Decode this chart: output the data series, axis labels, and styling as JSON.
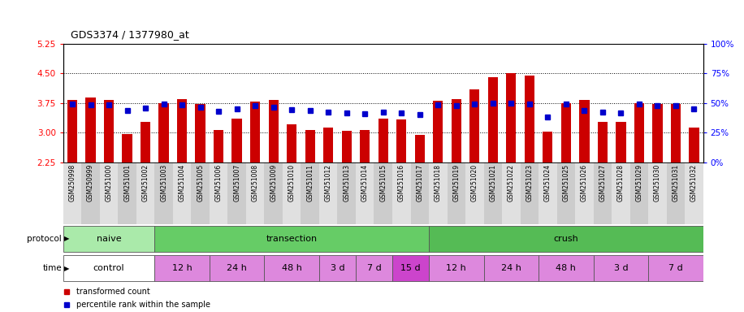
{
  "title": "GDS3374 / 1377980_at",
  "samples": [
    "GSM250998",
    "GSM250999",
    "GSM251000",
    "GSM251001",
    "GSM251002",
    "GSM251003",
    "GSM251004",
    "GSM251005",
    "GSM251006",
    "GSM251007",
    "GSM251008",
    "GSM251009",
    "GSM251010",
    "GSM251011",
    "GSM251012",
    "GSM251013",
    "GSM251014",
    "GSM251015",
    "GSM251016",
    "GSM251017",
    "GSM251018",
    "GSM251019",
    "GSM251020",
    "GSM251021",
    "GSM251022",
    "GSM251023",
    "GSM251024",
    "GSM251025",
    "GSM251026",
    "GSM251027",
    "GSM251028",
    "GSM251029",
    "GSM251030",
    "GSM251031",
    "GSM251032"
  ],
  "bar_values": [
    3.83,
    3.88,
    3.83,
    2.97,
    3.28,
    3.75,
    3.85,
    3.72,
    3.07,
    3.35,
    3.78,
    3.82,
    3.2,
    3.06,
    3.12,
    3.04,
    3.06,
    3.35,
    3.34,
    2.95,
    3.8,
    3.85,
    4.1,
    4.4,
    4.5,
    4.45,
    3.02,
    3.75,
    3.82,
    3.28,
    3.27,
    3.75,
    3.72,
    3.72,
    3.12
  ],
  "percentile_values": [
    3.72,
    3.7,
    3.7,
    3.55,
    3.62,
    3.72,
    3.7,
    3.65,
    3.53,
    3.6,
    3.68,
    3.65,
    3.57,
    3.55,
    3.52,
    3.5,
    3.48,
    3.52,
    3.5,
    3.46,
    3.7,
    3.68,
    3.72,
    3.75,
    3.75,
    3.73,
    3.4,
    3.72,
    3.55,
    3.52,
    3.5,
    3.72,
    3.68,
    3.68,
    3.6
  ],
  "ylim_left": [
    2.25,
    5.25
  ],
  "ylim_right": [
    0,
    100
  ],
  "yticks_left": [
    2.25,
    3.0,
    3.75,
    4.5,
    5.25
  ],
  "yticks_right": [
    0,
    25,
    50,
    75,
    100
  ],
  "bar_color": "#cc0000",
  "dot_color": "#0000cc",
  "bar_bottom": 2.25,
  "protocol_groups": [
    {
      "label": "naive",
      "start": 0,
      "end": 4,
      "color": "#aaeaaa"
    },
    {
      "label": "transection",
      "start": 5,
      "end": 19,
      "color": "#66cc66"
    },
    {
      "label": "crush",
      "start": 20,
      "end": 34,
      "color": "#55bb55"
    }
  ],
  "time_groups": [
    {
      "label": "control",
      "start": 0,
      "end": 4,
      "color": "#ffffff"
    },
    {
      "label": "12 h",
      "start": 5,
      "end": 7,
      "color": "#dd88dd"
    },
    {
      "label": "24 h",
      "start": 8,
      "end": 10,
      "color": "#dd88dd"
    },
    {
      "label": "48 h",
      "start": 11,
      "end": 13,
      "color": "#dd88dd"
    },
    {
      "label": "3 d",
      "start": 14,
      "end": 15,
      "color": "#dd88dd"
    },
    {
      "label": "7 d",
      "start": 16,
      "end": 17,
      "color": "#dd88dd"
    },
    {
      "label": "15 d",
      "start": 18,
      "end": 19,
      "color": "#cc44cc"
    },
    {
      "label": "12 h",
      "start": 20,
      "end": 22,
      "color": "#dd88dd"
    },
    {
      "label": "24 h",
      "start": 23,
      "end": 25,
      "color": "#dd88dd"
    },
    {
      "label": "48 h",
      "start": 26,
      "end": 28,
      "color": "#dd88dd"
    },
    {
      "label": "3 d",
      "start": 29,
      "end": 31,
      "color": "#dd88dd"
    },
    {
      "label": "7 d",
      "start": 32,
      "end": 34,
      "color": "#dd88dd"
    }
  ],
  "legend_bar_label": "transformed count",
  "legend_dot_label": "percentile rank within the sample",
  "xlabel_protocol": "protocol",
  "xlabel_time": "time"
}
